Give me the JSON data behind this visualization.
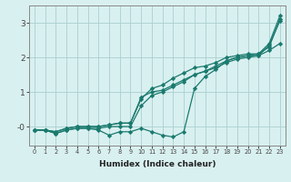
{
  "title": "",
  "xlabel": "Humidex (Indice chaleur)",
  "bg_color": "#d9f0f0",
  "grid_color": "#aacfcf",
  "line_color": "#1a7a6e",
  "xlim": [
    -0.5,
    23.5
  ],
  "ylim": [
    -0.55,
    3.5
  ],
  "yticks": [
    0,
    1,
    2,
    3
  ],
  "ytick_labels": [
    "-0",
    "1",
    "2",
    "3"
  ],
  "xticks": [
    0,
    1,
    2,
    3,
    4,
    5,
    6,
    7,
    8,
    9,
    10,
    11,
    12,
    13,
    14,
    15,
    16,
    17,
    18,
    19,
    20,
    21,
    22,
    23
  ],
  "lines": [
    {
      "x": [
        0,
        1,
        2,
        3,
        4,
        5,
        6,
        7,
        8,
        9,
        10,
        11,
        12,
        13,
        14,
        15,
        16,
        17,
        18,
        19,
        20,
        21,
        22,
        23
      ],
      "y": [
        -0.1,
        -0.1,
        -0.2,
        -0.1,
        -0.05,
        -0.05,
        -0.05,
        0.0,
        0.0,
        0.0,
        0.6,
        0.9,
        1.0,
        1.15,
        1.3,
        1.5,
        1.6,
        1.75,
        1.9,
        2.0,
        2.05,
        2.1,
        2.3,
        3.1
      ]
    },
    {
      "x": [
        0,
        1,
        2,
        3,
        4,
        5,
        6,
        7,
        8,
        9,
        10,
        11,
        12,
        13,
        14,
        15,
        16,
        17,
        18,
        19,
        20,
        21,
        22,
        23
      ],
      "y": [
        -0.1,
        -0.1,
        -0.15,
        -0.05,
        -0.0,
        -0.0,
        0.0,
        0.05,
        0.1,
        0.1,
        0.8,
        1.1,
        1.2,
        1.4,
        1.55,
        1.7,
        1.75,
        1.85,
        2.0,
        2.05,
        2.1,
        2.1,
        2.4,
        3.2
      ]
    },
    {
      "x": [
        0,
        1,
        2,
        3,
        4,
        5,
        6,
        7,
        8,
        9,
        10,
        11,
        12,
        13,
        14,
        15,
        16,
        17,
        18,
        19,
        20,
        21,
        22,
        23
      ],
      "y": [
        -0.1,
        -0.1,
        -0.15,
        -0.05,
        -0.0,
        -0.0,
        0.0,
        0.05,
        0.1,
        0.1,
        0.85,
        1.0,
        1.05,
        1.2,
        1.35,
        1.5,
        1.6,
        1.7,
        1.85,
        1.95,
        2.0,
        2.05,
        2.2,
        2.4
      ]
    },
    {
      "x": [
        0,
        1,
        2,
        3,
        4,
        5,
        6,
        7,
        8,
        9,
        10,
        11,
        12,
        13,
        14,
        15,
        16,
        17,
        18,
        19,
        20,
        21,
        22,
        23
      ],
      "y": [
        -0.1,
        -0.1,
        -0.2,
        -0.1,
        -0.05,
        -0.05,
        -0.1,
        -0.25,
        -0.15,
        -0.15,
        -0.05,
        -0.15,
        -0.25,
        -0.3,
        -0.15,
        1.1,
        1.45,
        1.65,
        1.9,
        2.0,
        2.05,
        2.05,
        2.35,
        3.05
      ]
    }
  ],
  "marker": "D",
  "markersize": 2.2,
  "linewidth": 0.9
}
